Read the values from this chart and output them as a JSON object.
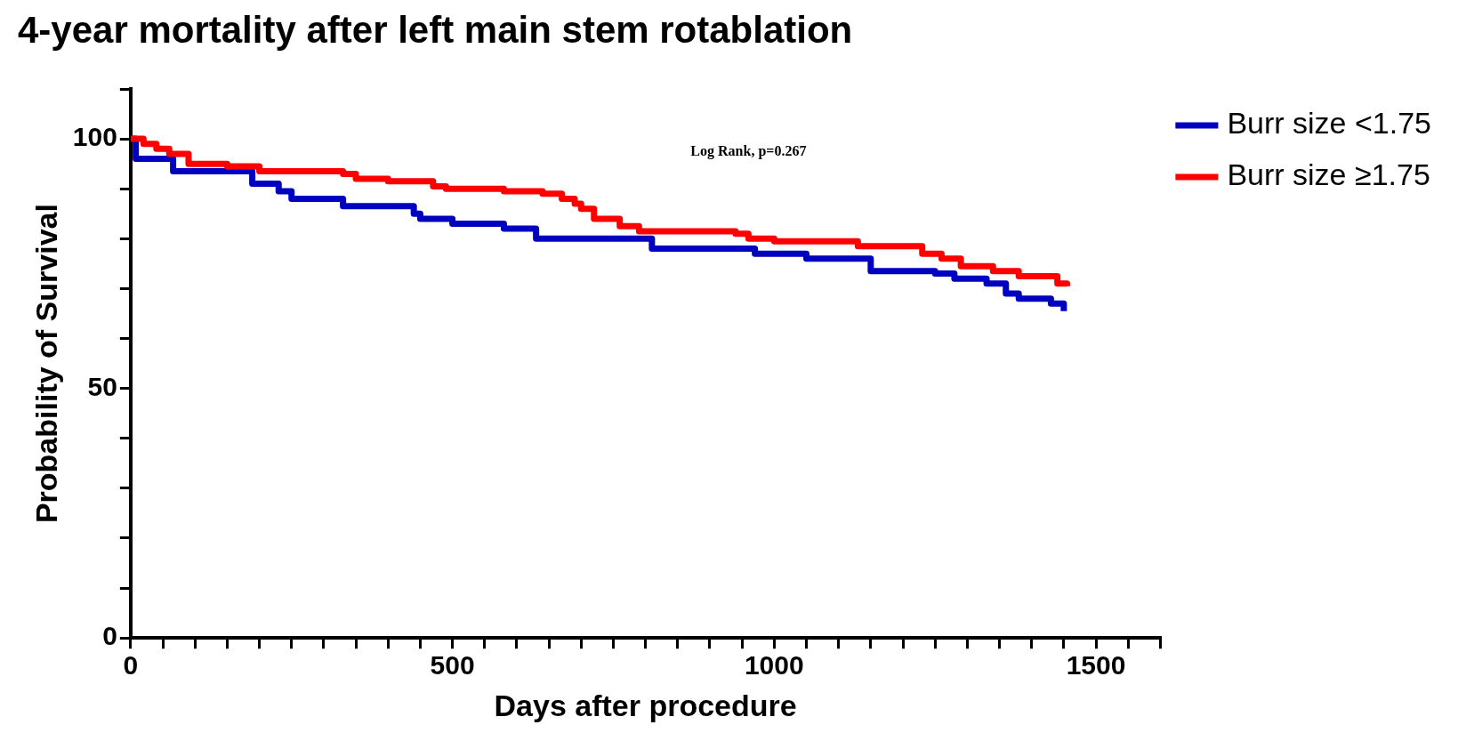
{
  "chart_data": {
    "type": "step",
    "title": "4-year mortality after left main stem rotablation",
    "xlabel": "Days after procedure",
    "ylabel": "Probability of Survival",
    "annotations": [
      "Log Rank, p=0.267"
    ],
    "xlim": [
      0,
      1600
    ],
    "ylim": [
      0,
      110
    ],
    "xticks": [
      0,
      {
        "value": 50,
        "label": null
      },
      {
        "value": 100,
        "label": null
      },
      {
        "value": 150,
        "label": null
      },
      {
        "value": 200,
        "label": null
      },
      {
        "value": 250,
        "label": null
      },
      {
        "value": 300,
        "label": null
      },
      {
        "value": 350,
        "label": null
      },
      {
        "value": 400,
        "label": null
      },
      {
        "value": 450,
        "label": null
      },
      500,
      {
        "value": 550,
        "label": null
      },
      {
        "value": 600,
        "label": null
      },
      {
        "value": 650,
        "label": null
      },
      {
        "value": 700,
        "label": null
      },
      {
        "value": 750,
        "label": null
      },
      {
        "value": 800,
        "label": null
      },
      {
        "value": 850,
        "label": null
      },
      {
        "value": 900,
        "label": null
      },
      {
        "value": 950,
        "label": null
      },
      1000,
      {
        "value": 1050,
        "label": null
      },
      {
        "value": 1100,
        "label": null
      },
      {
        "value": 1150,
        "label": null
      },
      {
        "value": 1200,
        "label": null
      },
      {
        "value": 1250,
        "label": null
      },
      {
        "value": 1300,
        "label": null
      },
      {
        "value": 1350,
        "label": null
      },
      {
        "value": 1400,
        "label": null
      },
      {
        "value": 1450,
        "label": null
      },
      1500,
      {
        "value": 1550,
        "label": null
      },
      {
        "value": 1600,
        "label": null
      }
    ],
    "yticks": [
      0,
      {
        "value": 10,
        "label": null
      },
      {
        "value": 20,
        "label": null
      },
      {
        "value": 30,
        "label": null
      },
      {
        "value": 40,
        "label": null
      },
      50,
      {
        "value": 60,
        "label": null
      },
      {
        "value": 70,
        "label": null
      },
      {
        "value": 80,
        "label": null
      },
      {
        "value": 90,
        "label": null
      },
      100,
      {
        "value": 110,
        "label": null
      }
    ],
    "grid": false,
    "legend": "top right",
    "marker": "none",
    "line_style": "solid",
    "series": [
      {
        "name": "Burr size <1.75",
        "color": "#0000c0",
        "x": [
          0,
          8,
          66,
          189,
          230,
          250,
          300,
          330,
          440,
          450,
          500,
          580,
          630,
          810,
          970,
          1050,
          1150,
          1250,
          1280,
          1330,
          1360,
          1380,
          1430,
          1450
        ],
        "values": [
          100,
          96,
          93.5,
          91,
          89.5,
          88,
          88,
          86.5,
          85,
          84,
          83,
          82,
          80,
          78,
          77,
          76,
          73.5,
          73,
          72,
          71,
          69,
          68,
          67,
          65.5
        ]
      },
      {
        "name": "Burr size ≥1.75",
        "color": "#ff0000",
        "x": [
          0,
          20,
          40,
          60,
          90,
          150,
          200,
          330,
          350,
          400,
          470,
          490,
          580,
          640,
          670,
          690,
          700,
          720,
          760,
          790,
          940,
          960,
          1000,
          1130,
          1230,
          1260,
          1290,
          1340,
          1380,
          1440,
          1455
        ],
        "values": [
          100,
          99,
          98,
          97,
          95,
          94.5,
          93.5,
          93,
          92,
          91.5,
          90.5,
          90,
          89.5,
          89,
          88,
          87,
          86,
          84,
          82.5,
          81.5,
          81,
          80,
          79.5,
          78.5,
          77,
          76,
          74.5,
          73.5,
          72.5,
          71,
          70.5
        ]
      }
    ]
  }
}
